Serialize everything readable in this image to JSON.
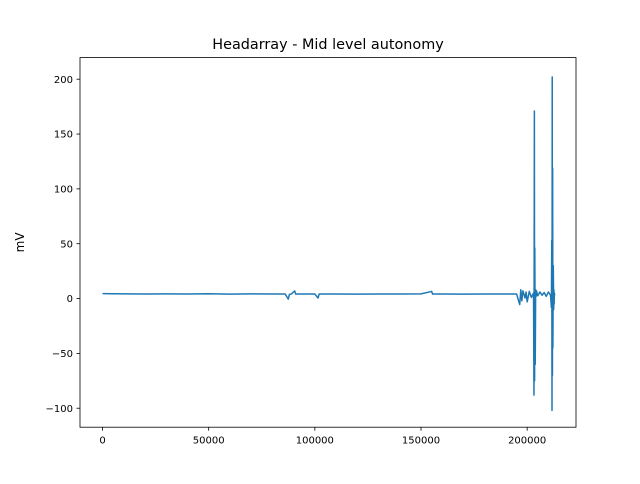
{
  "chart_data": {
    "type": "line",
    "title": "Headarray - Mid level autonomy",
    "xlabel": "",
    "ylabel": "mV",
    "xlim": [
      -10600,
      223000
    ],
    "ylim": [
      -117.3,
      219.7
    ],
    "x_ticks": [
      0,
      50000,
      100000,
      150000,
      200000
    ],
    "x_tick_labels": [
      "0",
      "50000",
      "100000",
      "150000",
      "200000"
    ],
    "y_ticks": [
      -100,
      -50,
      0,
      50,
      100,
      150,
      200
    ],
    "y_tick_labels": [
      "−100",
      "−50",
      "0",
      "50",
      "100",
      "150",
      "200"
    ],
    "grid": false,
    "legend": "none",
    "series": [
      {
        "color": "#1f77b4",
        "x": [
          0,
          10000,
          20000,
          30000,
          40000,
          50000,
          60000,
          70000,
          80000,
          86000,
          87500,
          88000,
          89000,
          90500,
          91000,
          92000,
          100000,
          101500,
          102000,
          103000,
          110000,
          120000,
          130000,
          140000,
          150000,
          155000,
          155500,
          156000,
          160000,
          170000,
          180000,
          190000,
          195000,
          196500,
          197000,
          197500,
          198000,
          199000,
          199500,
          200000,
          201000,
          202000,
          203000,
          203200,
          203400,
          203500,
          203600,
          203800,
          204000,
          204200,
          204400,
          205000,
          206000,
          207000,
          208000,
          209000,
          210000,
          211000,
          211400,
          211600,
          211700,
          211800,
          211900,
          212000,
          212100,
          212300,
          212500,
          212600,
          212700,
          212800,
          213000
        ],
        "y": [
          4.5,
          4.3,
          4.1,
          4.3,
          4.2,
          4.4,
          4.0,
          4.3,
          4.1,
          4.2,
          -0.5,
          3.8,
          4.2,
          7.0,
          4.0,
          4.2,
          4.1,
          0.5,
          4.0,
          4.2,
          4.1,
          4.0,
          4.2,
          4.1,
          4.3,
          6.5,
          4.0,
          4.2,
          4.1,
          4.0,
          4.2,
          4.1,
          4.2,
          -5.5,
          8.0,
          -2.0,
          7.0,
          0.5,
          6.0,
          -3.0,
          6.5,
          1.0,
          5.0,
          -88.0,
          171.0,
          -75.0,
          46.0,
          -60.0,
          8.0,
          2.0,
          7.0,
          2.5,
          6.0,
          3.0,
          5.5,
          2.0,
          6.0,
          3.0,
          -8.0,
          53.0,
          -102.0,
          202.0,
          -70.0,
          119.0,
          -45.0,
          30.0,
          -10.0,
          8.0,
          -5.0,
          5.0,
          3.0
        ]
      }
    ]
  }
}
